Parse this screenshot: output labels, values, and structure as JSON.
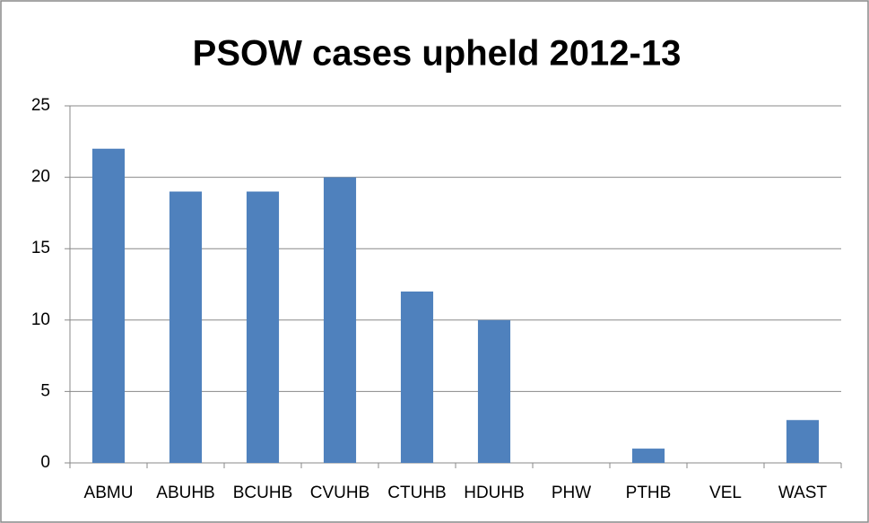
{
  "chart_data": {
    "type": "bar",
    "title": "PSOW cases upheld 2012-13",
    "categories": [
      "ABMU",
      "ABUHB",
      "BCUHB",
      "CVUHB",
      "CTUHB",
      "HDUHB",
      "PHW",
      "PTHB",
      "VEL",
      "WAST"
    ],
    "values": [
      22,
      19,
      19,
      20,
      12,
      10,
      0,
      1,
      0,
      3
    ],
    "color": "#4f81bd",
    "ylim": [
      0,
      25
    ],
    "yticks": [
      0,
      5,
      10,
      15,
      20,
      25
    ],
    "grid": true
  }
}
